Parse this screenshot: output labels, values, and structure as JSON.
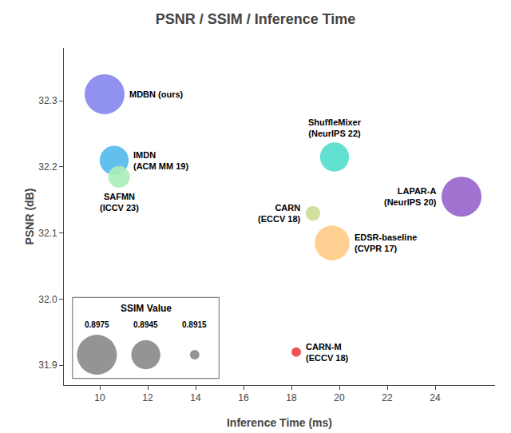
{
  "chart_data": {
    "type": "bubble",
    "title": "PSNR / SSIM / Inference Time",
    "xlabel": "Inference Time (ms)",
    "ylabel": "PSNR (dB)",
    "xlim": [
      8.5,
      26.5
    ],
    "ylim": [
      31.87,
      32.38
    ],
    "xticks": [
      10,
      12,
      14,
      16,
      18,
      20,
      22,
      24
    ],
    "yticks": [
      31.9,
      {
        "value": 32.0,
        "label": "32.0"
      },
      32.1,
      32.2,
      32.3
    ],
    "grid": false,
    "series": [
      {
        "name": "MDBN (ours)",
        "color": "#8888ee",
        "x": [
          10.2
        ],
        "values": [
          32.31
        ],
        "sizes": [
          0.8975
        ]
      },
      {
        "name": "IMDN\n(ACM MM 19)",
        "color": "#55bbee",
        "x": [
          10.6
        ],
        "values": [
          32.21
        ],
        "sizes": [
          0.8945
        ]
      },
      {
        "name": "SAFMN\n(ICCV 23)",
        "color": "#aaeebb",
        "x": [
          10.8
        ],
        "values": [
          32.185
        ],
        "sizes": [
          0.893
        ]
      },
      {
        "name": "ShuffleMixer\n(NeurIPS 22)",
        "color": "#55ddcc",
        "x": [
          19.8
        ],
        "values": [
          32.215
        ],
        "sizes": [
          0.8945
        ]
      },
      {
        "name": "CARN\n(ECCV 18)",
        "color": "#ccdd99",
        "x": [
          18.9
        ],
        "values": [
          32.13
        ],
        "sizes": [
          0.892
        ]
      },
      {
        "name": "EDSR-baseline\n(CVPR 17)",
        "color": "#ffcc88",
        "x": [
          19.7
        ],
        "values": [
          32.085
        ],
        "sizes": [
          0.896
        ]
      },
      {
        "name": "LAPAR-A\n(NeurIPS 20)",
        "color": "#9966cc",
        "x": [
          25.1
        ],
        "values": [
          32.155
        ],
        "sizes": [
          0.8975
        ]
      },
      {
        "name": "CARN-M\n(ECCV 18)",
        "color": "#ee4444",
        "x": [
          18.2
        ],
        "values": [
          31.92
        ],
        "sizes": [
          0.8915
        ]
      }
    ],
    "size_legend": {
      "title": "SSIM Value",
      "values": [
        0.8975,
        0.8945,
        0.8915
      ],
      "color": "#888888"
    }
  }
}
